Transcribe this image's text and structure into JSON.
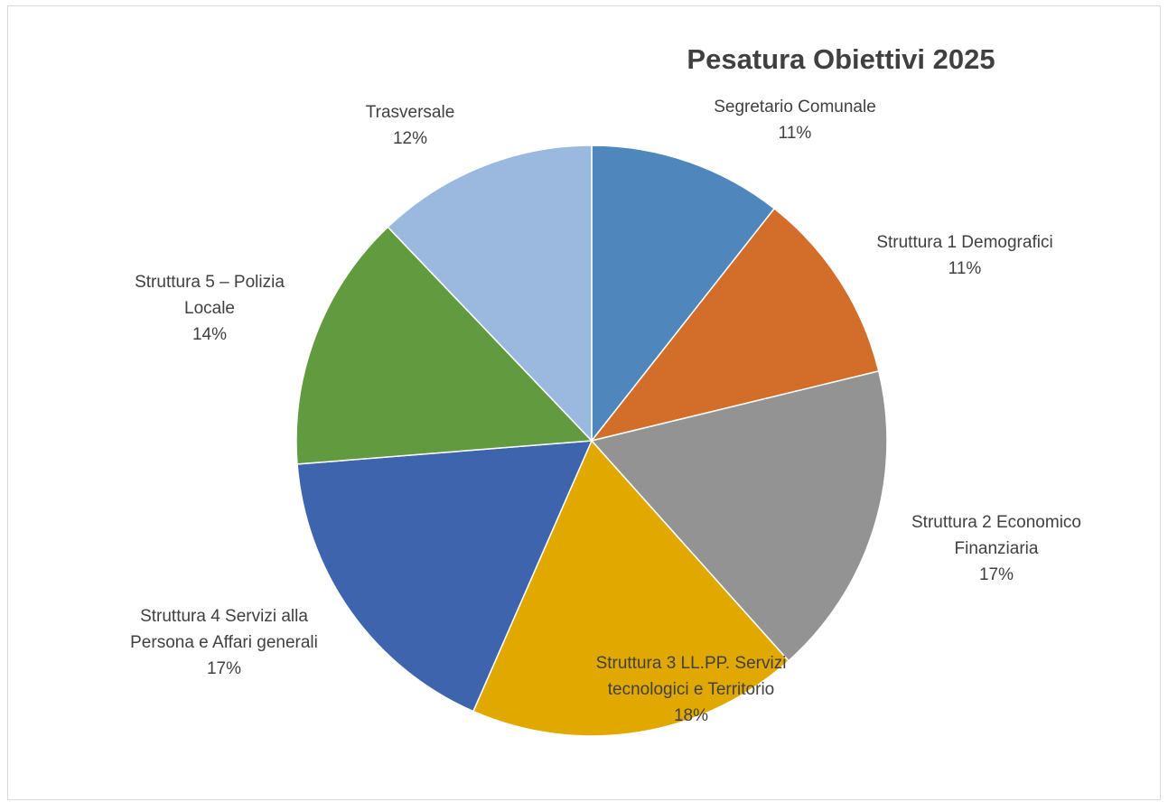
{
  "chart_data": {
    "type": "pie",
    "title": "Pesatura Obiettivi 2025",
    "slices": [
      {
        "label_lines": [
          "Segretario Comunale"
        ],
        "percent_label": "11%",
        "value": 10.5,
        "color": "#4f87bc"
      },
      {
        "label_lines": [
          "Struttura 1 Demografici"
        ],
        "percent_label": "11%",
        "value": 10.5,
        "color": "#d26d2a"
      },
      {
        "label_lines": [
          "Struttura 2 Economico",
          "Finanziaria"
        ],
        "percent_label": "17%",
        "value": 17.0,
        "color": "#939393"
      },
      {
        "label_lines": [
          "Struttura 3 LL.PP. Servizi",
          "tecnologici e Territorio"
        ],
        "percent_label": "18%",
        "value": 18.0,
        "color": "#e1a900"
      },
      {
        "label_lines": [
          "Struttura 4 Servizi alla",
          "Persona e Affari generali"
        ],
        "percent_label": "17%",
        "value": 17.0,
        "color": "#3e64ad"
      },
      {
        "label_lines": [
          "Struttura 5 – Polizia",
          "Locale"
        ],
        "percent_label": "14%",
        "value": 14.0,
        "color": "#629a3f"
      },
      {
        "label_lines": [
          "Trasversale"
        ],
        "percent_label": "12%",
        "value": 12.0,
        "color": "#9bb9df"
      }
    ],
    "start_angle": "12 o'clock",
    "direction": "clockwise",
    "legend": "none"
  }
}
